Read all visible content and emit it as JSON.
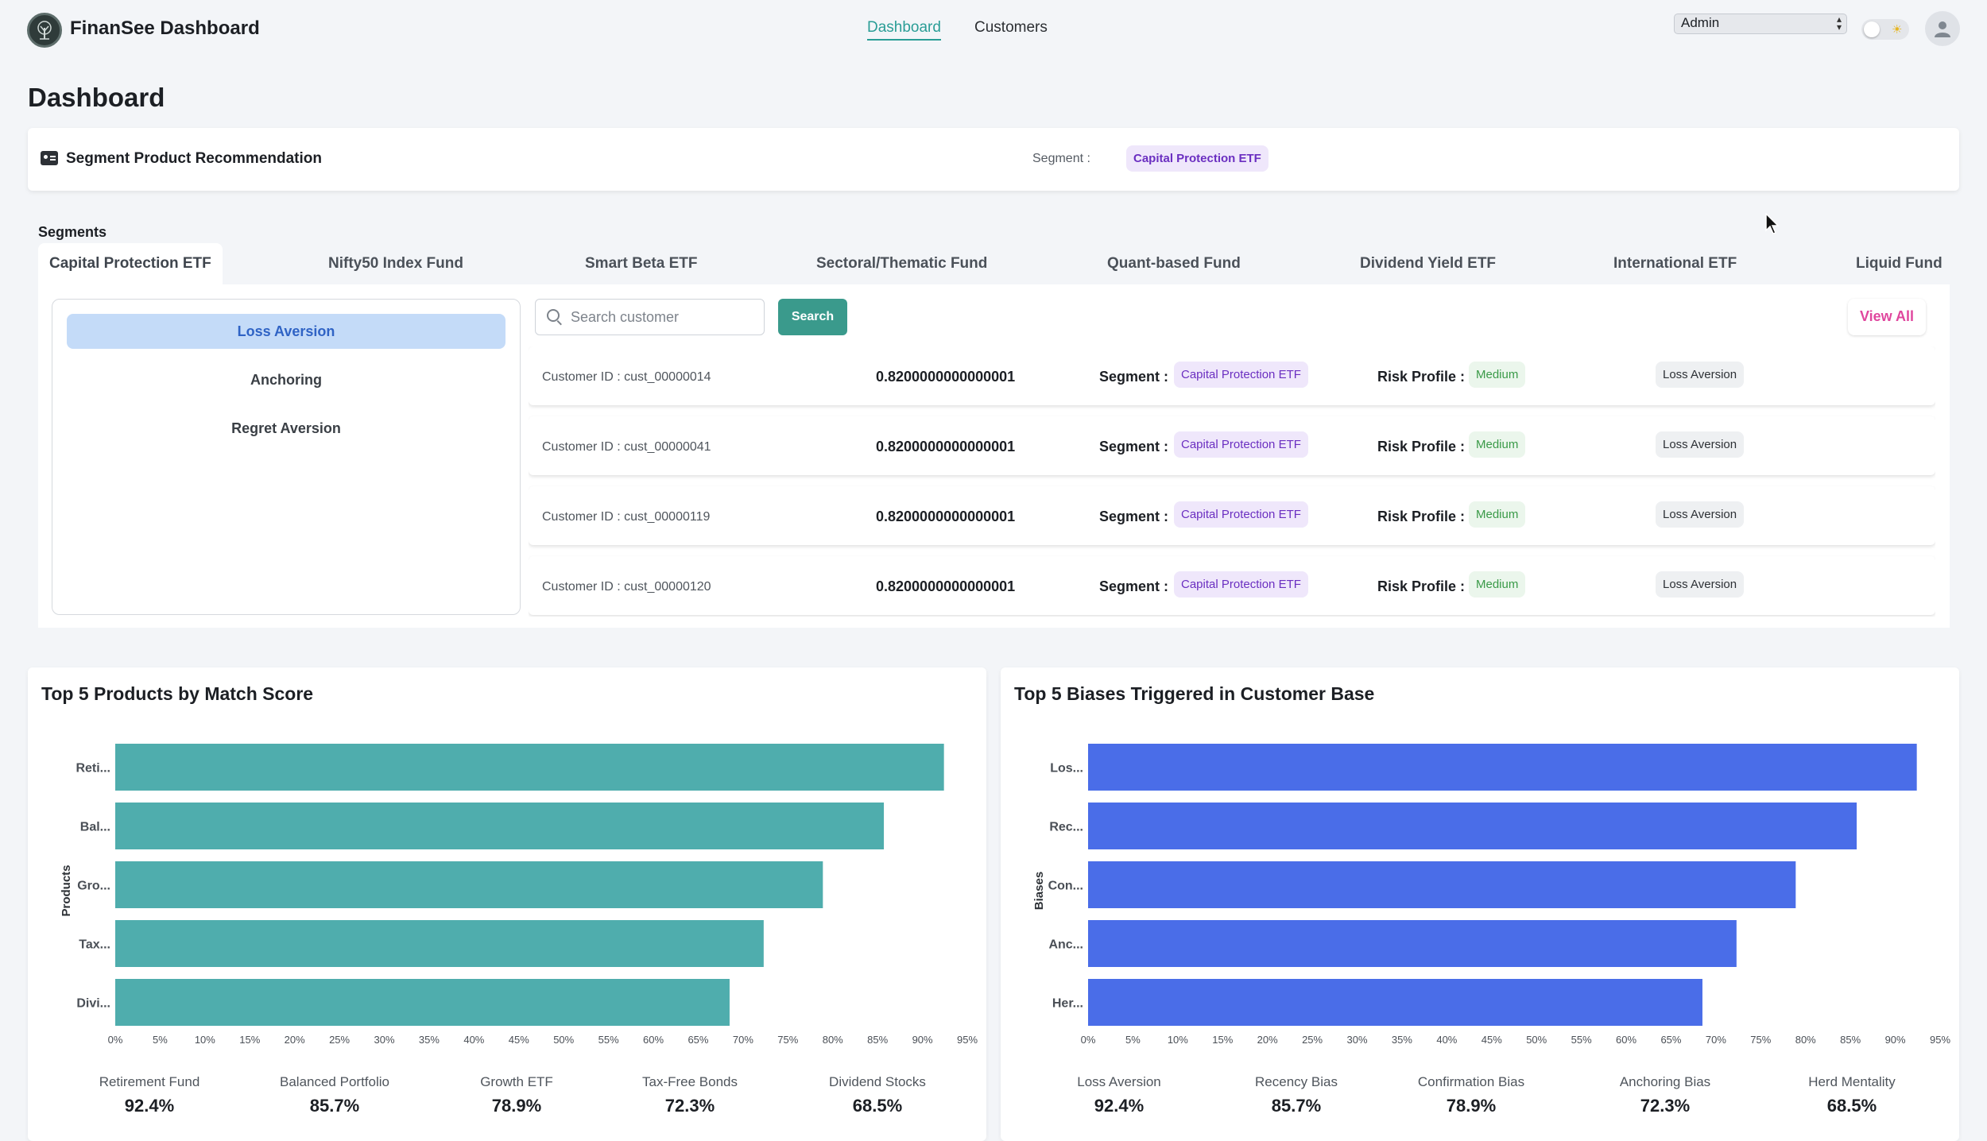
{
  "app": {
    "title": "FinanSee Dashboard"
  },
  "nav": {
    "links": [
      "Dashboard",
      "Customers"
    ],
    "active": "Dashboard"
  },
  "role_select": {
    "value": "Admin"
  },
  "page_title": "Dashboard",
  "recommendation": {
    "title": "Segment Product Recommendation",
    "segment_label": "Segment :",
    "segment_value": "Capital Protection ETF"
  },
  "segments": {
    "label": "Segments",
    "tabs": [
      "Capital Protection ETF",
      "Nifty50 Index Fund",
      "Smart Beta ETF",
      "Sectoral/Thematic Fund",
      "Quant-based Fund",
      "Dividend Yield ETF",
      "International ETF",
      "Liquid Fund"
    ],
    "active_tab": "Capital Protection ETF",
    "biases": [
      "Loss Aversion",
      "Anchoring",
      "Regret Aversion"
    ],
    "active_bias": "Loss Aversion",
    "search": {
      "placeholder": "Search customer",
      "button": "Search"
    },
    "view_all": "View All",
    "row_labels": {
      "segment": "Segment :",
      "risk": "Risk Profile :"
    },
    "customers": [
      {
        "id": "Customer ID : cust_00000014",
        "score": "0.8200000000000001",
        "segment": "Capital Protection ETF",
        "risk": "Medium",
        "bias": "Loss Aversion"
      },
      {
        "id": "Customer ID : cust_00000041",
        "score": "0.8200000000000001",
        "segment": "Capital Protection ETF",
        "risk": "Medium",
        "bias": "Loss Aversion"
      },
      {
        "id": "Customer ID : cust_00000119",
        "score": "0.8200000000000001",
        "segment": "Capital Protection ETF",
        "risk": "Medium",
        "bias": "Loss Aversion"
      },
      {
        "id": "Customer ID : cust_00000120",
        "score": "0.8200000000000001",
        "segment": "Capital Protection ETF",
        "risk": "Medium",
        "bias": "Loss Aversion"
      }
    ]
  },
  "colors": {
    "accent": "#2a9d96",
    "products_bar": "#4fadad",
    "biases_bar": "#4a6de8",
    "pink": "#e0479e",
    "purple": "#6b2fc1"
  },
  "chart_data": [
    {
      "type": "bar",
      "orientation": "horizontal",
      "title": "Top 5 Products by Match Score",
      "ylabel": "Products",
      "xlabel": "",
      "categories": [
        "Reti...",
        "Bal...",
        "Gro...",
        "Tax...",
        "Divi..."
      ],
      "values": [
        92.4,
        85.7,
        78.9,
        72.3,
        68.5
      ],
      "xlim": [
        0,
        95
      ],
      "x_ticks": [
        "0%",
        "5%",
        "10%",
        "15%",
        "20%",
        "25%",
        "30%",
        "35%",
        "40%",
        "45%",
        "50%",
        "55%",
        "60%",
        "65%",
        "70%",
        "75%",
        "80%",
        "85%",
        "90%",
        "95%"
      ],
      "stats": [
        {
          "label": "Retirement Fund",
          "value": "92.4%"
        },
        {
          "label": "Balanced Portfolio",
          "value": "85.7%"
        },
        {
          "label": "Growth ETF",
          "value": "78.9%"
        },
        {
          "label": "Tax-Free Bonds",
          "value": "72.3%"
        },
        {
          "label": "Dividend Stocks",
          "value": "68.5%"
        }
      ]
    },
    {
      "type": "bar",
      "orientation": "horizontal",
      "title": "Top 5 Biases Triggered in Customer Base",
      "ylabel": "Biases",
      "xlabel": "",
      "categories": [
        "Los...",
        "Rec...",
        "Con...",
        "Anc...",
        "Her..."
      ],
      "values": [
        92.4,
        85.7,
        78.9,
        72.3,
        68.5
      ],
      "xlim": [
        0,
        95
      ],
      "x_ticks": [
        "0%",
        "5%",
        "10%",
        "15%",
        "20%",
        "25%",
        "30%",
        "35%",
        "40%",
        "45%",
        "50%",
        "55%",
        "60%",
        "65%",
        "70%",
        "75%",
        "80%",
        "85%",
        "90%",
        "95%"
      ],
      "stats": [
        {
          "label": "Loss Aversion",
          "value": "92.4%"
        },
        {
          "label": "Recency Bias",
          "value": "85.7%"
        },
        {
          "label": "Confirmation Bias",
          "value": "78.9%"
        },
        {
          "label": "Anchoring Bias",
          "value": "72.3%"
        },
        {
          "label": "Herd Mentality",
          "value": "68.5%"
        }
      ]
    }
  ]
}
